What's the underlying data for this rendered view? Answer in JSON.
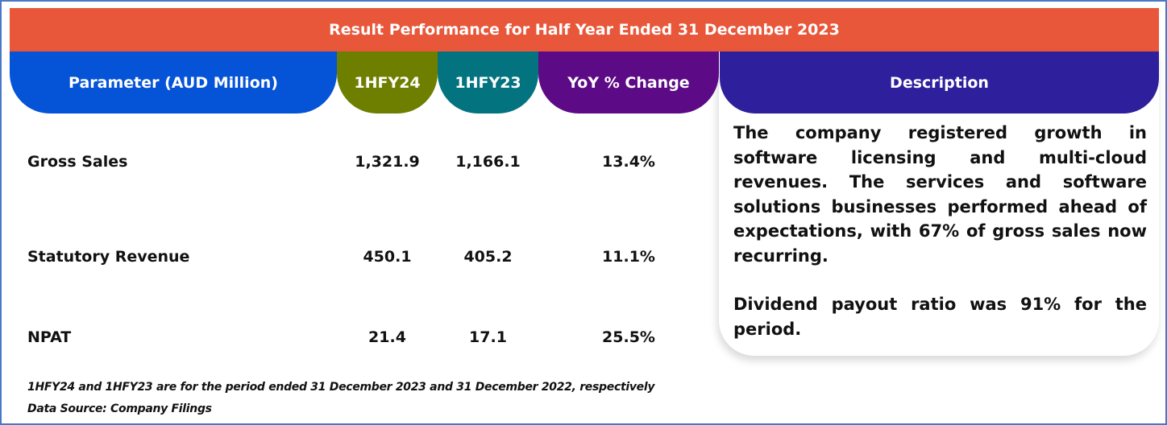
{
  "title": "Result Performance for Half Year Ended 31 December 2023",
  "headers": {
    "parameter": "Parameter (AUD Million)",
    "fy24": "1HFY24",
    "fy23": "1HFY23",
    "yoy": "YoY % Change",
    "description": "Description"
  },
  "rows": [
    {
      "label": "Gross Sales",
      "fy24": "1,321.9",
      "fy23": "1,166.1",
      "yoy": "13.4%"
    },
    {
      "label": "Statutory Revenue",
      "fy24": "450.1",
      "fy23": "405.2",
      "yoy": "11.1%"
    },
    {
      "label": "NPAT",
      "fy24": "21.4",
      "fy23": "17.1",
      "yoy": "25.5%"
    }
  ],
  "description": {
    "paragraph1": "The company registered growth in software licensing and multi-cloud revenues. The services and software solutions businesses performed ahead of expectations, with 67% of gross sales now recurring.",
    "paragraph2": "Dividend payout ratio was 91% for the period."
  },
  "notes": {
    "period_note": "1HFY24 and 1HFY23 are for the period ended 31 December 2023 and 31 December 2022, respectively",
    "source": "Data Source: Company Filings"
  },
  "colors": {
    "banner": "#e8573a",
    "parameter_header": "#0553d6",
    "fy24_header": "#6e7f00",
    "fy23_header": "#03737f",
    "yoy_header": "#5c0a85",
    "description_header": "#2e1f9c"
  }
}
